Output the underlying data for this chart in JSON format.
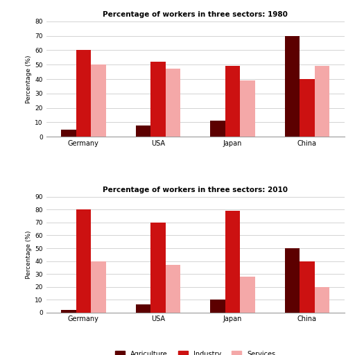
{
  "title_1980": "Percentage of workers in three sectors: 1980",
  "title_2010": "Percentage of workers in three sectors: 2010",
  "ylabel": "Percentage (%)",
  "countries": [
    "Germany",
    "USA",
    "Japan",
    "China"
  ],
  "sectors": [
    "Agriculture",
    "Industry",
    "Services"
  ],
  "colors": [
    "#5c0000",
    "#cc1111",
    "#f4a8a8"
  ],
  "data_1980": {
    "Agriculture": [
      5,
      8,
      11,
      70
    ],
    "Industry": [
      60,
      52,
      49,
      40
    ],
    "Services": [
      50,
      47,
      39,
      49
    ]
  },
  "data_2010": {
    "Agriculture": [
      2,
      6,
      10,
      50
    ],
    "Industry": [
      80,
      70,
      79,
      40
    ],
    "Services": [
      40,
      37,
      28,
      20
    ]
  },
  "ylim_1980": [
    0,
    80
  ],
  "ylim_2010": [
    0,
    90
  ],
  "yticks_1980": [
    0,
    10,
    20,
    30,
    40,
    50,
    60,
    70,
    80
  ],
  "yticks_2010": [
    0,
    10,
    20,
    30,
    40,
    50,
    60,
    70,
    80,
    90
  ],
  "background_color": "#ffffff"
}
